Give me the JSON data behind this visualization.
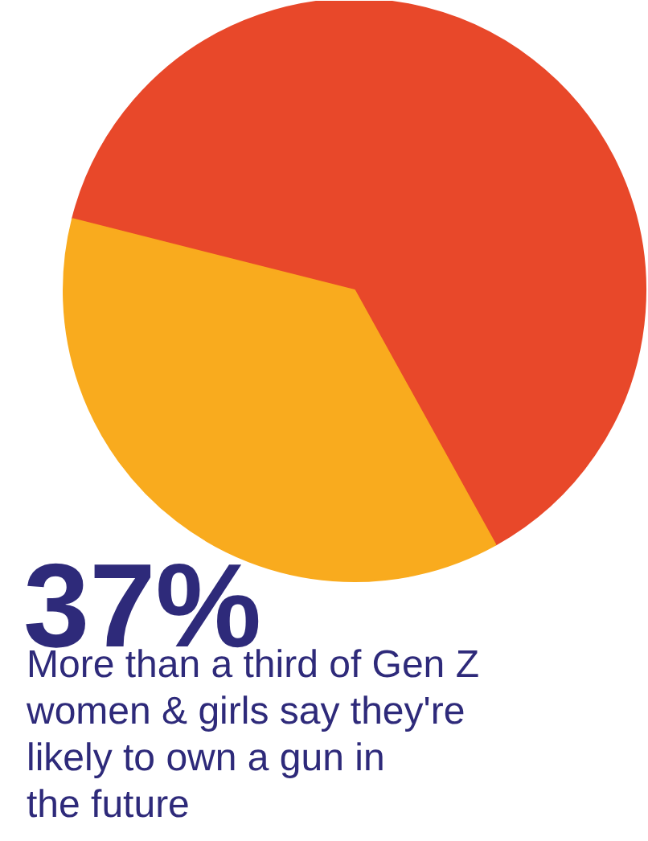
{
  "chart_data": {
    "type": "pie",
    "categories": [
      null,
      null
    ],
    "values": [
      63,
      37
    ],
    "colors": [
      "#e8482a",
      "#f9ab1e"
    ],
    "value_labels": [
      null,
      "37%"
    ],
    "annotations": [
      "More than a third of Gen Z\nwomen & girls say they're\nlikely to own a gun in\nthe future"
    ]
  }
}
